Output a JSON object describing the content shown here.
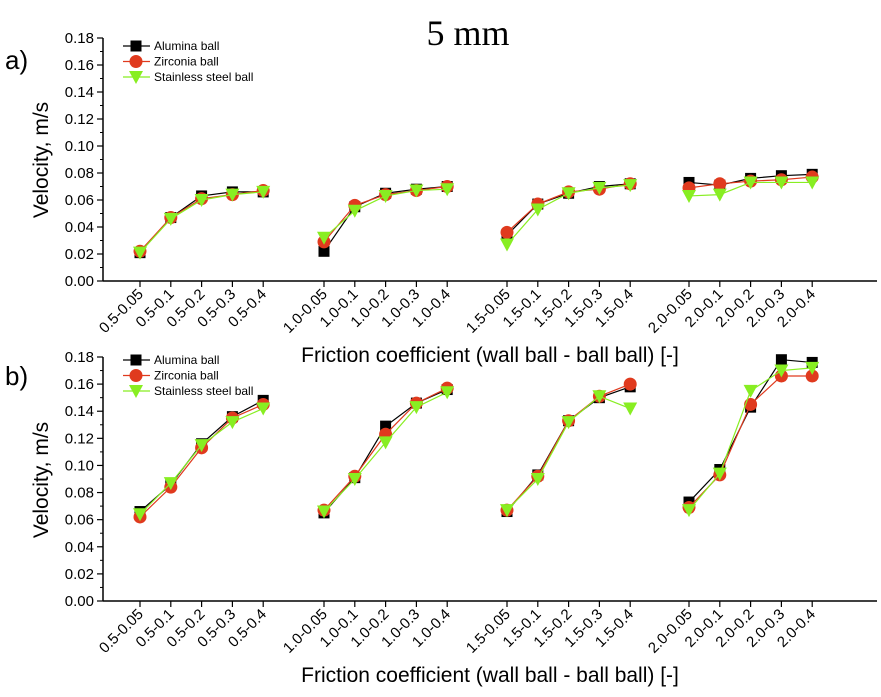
{
  "title": "5 mm",
  "chart_data": [
    {
      "panel": "a)",
      "type": "line",
      "ylabel": "Velocity, m/s",
      "xlabel": "Friction coefficient (wall ball - ball ball) [-]",
      "ylim": [
        0,
        0.18
      ],
      "yticks": [
        "0.00",
        "0.02",
        "0.04",
        "0.06",
        "0.08",
        "0.10",
        "0.12",
        "0.14",
        "0.16",
        "0.18"
      ],
      "groups": [
        [
          "0.5-0.05",
          "0.5-0.1",
          "0.5-0.2",
          "0.5-0.3",
          "0.5-0.4"
        ],
        [
          "1.0-0.05",
          "1.0-0.1",
          "1.0-0.2",
          "1.0-0.3",
          "1.0-0.4"
        ],
        [
          "1.5-0.05",
          "1.5-0.1",
          "1.5-0.2",
          "1.5-0.3",
          "1.5-0.4"
        ],
        [
          "2.0-0.05",
          "2.0-0.1",
          "2.0-0.2",
          "2.0-0.3",
          "2.0-0.4"
        ]
      ],
      "legend_position": "top-left",
      "series": [
        {
          "name": "Alumina ball",
          "color": "#000000",
          "marker": "square",
          "values": [
            [
              0.021,
              0.047,
              0.063,
              0.066,
              0.066
            ],
            [
              0.022,
              0.055,
              0.065,
              0.068,
              0.07
            ],
            [
              0.034,
              0.057,
              0.065,
              0.07,
              0.072
            ],
            [
              0.073,
              0.071,
              0.076,
              0.078,
              0.079
            ]
          ]
        },
        {
          "name": "Zirconia ball",
          "color": "#e03a1e",
          "marker": "circle",
          "values": [
            [
              0.022,
              0.047,
              0.061,
              0.064,
              0.067
            ],
            [
              0.029,
              0.056,
              0.064,
              0.067,
              0.07
            ],
            [
              0.036,
              0.057,
              0.066,
              0.068,
              0.072
            ],
            [
              0.069,
              0.072,
              0.074,
              0.075,
              0.077
            ]
          ]
        },
        {
          "name": "Stainless steel ball",
          "color": "#88ee22",
          "marker": "triangle-down",
          "values": [
            [
              0.021,
              0.046,
              0.06,
              0.064,
              0.066
            ],
            [
              0.032,
              0.052,
              0.063,
              0.067,
              0.068
            ],
            [
              0.027,
              0.053,
              0.065,
              0.069,
              0.071
            ],
            [
              0.063,
              0.064,
              0.073,
              0.073,
              0.073
            ]
          ]
        }
      ]
    },
    {
      "panel": "b)",
      "type": "line",
      "ylabel": "Velocity, m/s",
      "xlabel": "Friction coefficient (wall ball - ball ball) [-]",
      "ylim": [
        0,
        0.18
      ],
      "yticks": [
        "0.00",
        "0.02",
        "0.04",
        "0.06",
        "0.08",
        "0.10",
        "0.12",
        "0.14",
        "0.16",
        "0.18"
      ],
      "groups": [
        [
          "0.5-0.05",
          "0.5-0.1",
          "0.5-0.2",
          "0.5-0.3",
          "0.5-0.4"
        ],
        [
          "1.0-0.05",
          "1.0-0.1",
          "1.0-0.2",
          "1.0-0.3",
          "1.0-0.4"
        ],
        [
          "1.5-0.05",
          "1.5-0.1",
          "1.5-0.2",
          "1.5-0.3",
          "1.5-0.4"
        ],
        [
          "2.0-0.05",
          "2.0-0.1",
          "2.0-0.2",
          "2.0-0.3",
          "2.0-0.4"
        ]
      ],
      "legend_position": "top-left",
      "series": [
        {
          "name": "Alumina ball",
          "color": "#000000",
          "marker": "square",
          "values": [
            [
              0.066,
              0.086,
              0.116,
              0.136,
              0.148
            ],
            [
              0.065,
              0.091,
              0.129,
              0.146,
              0.156
            ],
            [
              0.066,
              0.093,
              0.133,
              0.15,
              0.158
            ],
            [
              0.073,
              0.097,
              0.143,
              0.178,
              0.176
            ]
          ]
        },
        {
          "name": "Zirconia ball",
          "color": "#e03a1e",
          "marker": "circle",
          "values": [
            [
              0.062,
              0.084,
              0.113,
              0.135,
              0.145
            ],
            [
              0.067,
              0.092,
              0.123,
              0.146,
              0.157
            ],
            [
              0.067,
              0.092,
              0.133,
              0.151,
              0.16
            ],
            [
              0.069,
              0.093,
              0.145,
              0.166,
              0.166
            ]
          ]
        },
        {
          "name": "Stainless steel ball",
          "color": "#88ee22",
          "marker": "triangle-down",
          "values": [
            [
              0.064,
              0.087,
              0.115,
              0.132,
              0.142
            ],
            [
              0.066,
              0.09,
              0.117,
              0.143,
              0.154
            ],
            [
              0.067,
              0.09,
              0.132,
              0.151,
              0.142
            ],
            [
              0.067,
              0.094,
              0.155,
              0.17,
              0.172
            ]
          ]
        }
      ]
    }
  ]
}
